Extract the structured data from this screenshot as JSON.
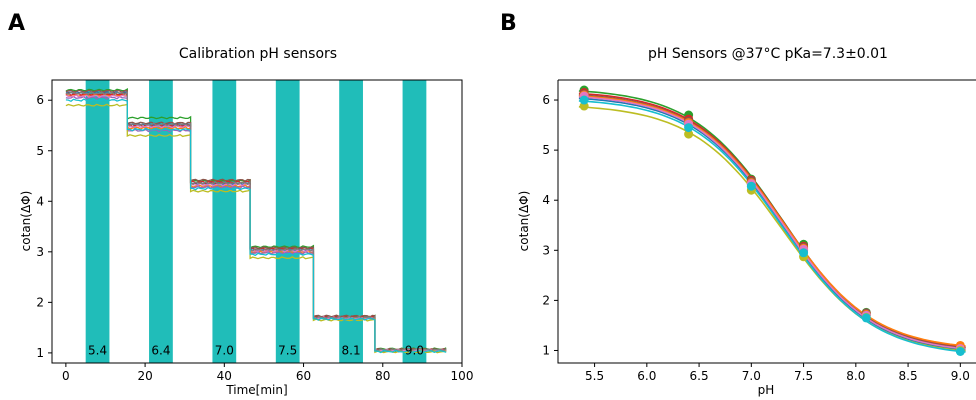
{
  "panel_letters": [
    "A",
    "B"
  ],
  "chart_data": [
    {
      "type": "line",
      "title": "Calibration pH sensors",
      "xlabel": "Time[min]",
      "ylabel": "cotan(ΔΦ)",
      "xlim": [
        -3.5,
        100
      ],
      "ylim": [
        0.8,
        6.4
      ],
      "xticks": [
        0,
        20,
        40,
        60,
        80,
        100
      ],
      "yticks": [
        1,
        2,
        3,
        4,
        5,
        6
      ],
      "grid": false,
      "bands": [
        {
          "x0": 5,
          "x1": 11,
          "label": "5.4"
        },
        {
          "x0": 21,
          "x1": 27,
          "label": "6.4"
        },
        {
          "x0": 37,
          "x1": 43,
          "label": "7.0"
        },
        {
          "x0": 53,
          "x1": 59,
          "label": "7.5"
        },
        {
          "x0": 69,
          "x1": 75,
          "label": "8.1"
        },
        {
          "x0": 85,
          "x1": 91,
          "label": "9.0"
        }
      ],
      "band_color": "#20bdb9",
      "step_times": [
        0,
        15.5,
        31.5,
        46.5,
        62.5,
        78,
        96
      ],
      "series": [
        {
          "color": "#1f77b4",
          "levels": [
            6.15,
            5.52,
            4.35,
            3.05,
            1.7,
            1.05
          ]
        },
        {
          "color": "#ff7f0e",
          "levels": [
            6.1,
            5.45,
            4.3,
            3.0,
            1.7,
            1.05
          ]
        },
        {
          "color": "#2ca02c",
          "levels": [
            6.2,
            5.65,
            4.4,
            3.1,
            1.72,
            1.08
          ]
        },
        {
          "color": "#d62728",
          "levels": [
            6.12,
            5.5,
            4.38,
            3.06,
            1.71,
            1.06
          ]
        },
        {
          "color": "#9467bd",
          "levels": [
            6.05,
            5.4,
            4.28,
            2.98,
            1.68,
            1.04
          ]
        },
        {
          "color": "#8c564b",
          "levels": [
            6.18,
            5.55,
            4.42,
            3.08,
            1.73,
            1.07
          ]
        },
        {
          "color": "#e377c2",
          "levels": [
            6.08,
            5.48,
            4.33,
            3.02,
            1.69,
            1.05
          ]
        },
        {
          "color": "#7f7f7f",
          "levels": [
            6.14,
            5.52,
            4.36,
            3.04,
            1.7,
            1.06
          ]
        },
        {
          "color": "#bcbd22",
          "levels": [
            5.9,
            5.3,
            4.2,
            2.88,
            1.65,
            1.02
          ]
        },
        {
          "color": "#17becf",
          "levels": [
            6.0,
            5.42,
            4.25,
            2.95,
            1.67,
            1.03
          ]
        }
      ]
    },
    {
      "type": "scatter",
      "title": "pH Sensors @37°C pKa=7.3±0.01",
      "xlabel": "pH",
      "ylabel": "cotan(ΔΦ)",
      "xlim": [
        5.15,
        9.15
      ],
      "ylim": [
        0.75,
        6.4
      ],
      "xticks": [
        5.5,
        6.0,
        6.5,
        7.0,
        7.5,
        8.0,
        8.5,
        9.0
      ],
      "yticks": [
        1,
        2,
        3,
        4,
        5,
        6
      ],
      "grid": false,
      "pKa": 7.3,
      "points_x": [
        5.4,
        6.4,
        7.0,
        7.5,
        8.1,
        9.0
      ],
      "series": [
        {
          "color": "#2ca02c",
          "y": [
            6.2,
            5.7,
            4.42,
            3.12,
            1.76,
            1.05
          ]
        },
        {
          "color": "#d62728",
          "y": [
            6.15,
            5.62,
            4.4,
            3.08,
            1.74,
            1.08
          ]
        },
        {
          "color": "#8c564b",
          "y": [
            6.12,
            5.58,
            4.38,
            3.06,
            1.75,
            1.06
          ]
        },
        {
          "color": "#ff7f0e",
          "y": [
            6.1,
            5.55,
            4.35,
            3.04,
            1.72,
            1.1
          ]
        },
        {
          "color": "#1f77b4",
          "y": [
            6.05,
            5.5,
            4.32,
            3.0,
            1.7,
            1.02
          ]
        },
        {
          "color": "#e377c2",
          "y": [
            6.08,
            5.52,
            4.33,
            3.02,
            1.7,
            1.04
          ]
        },
        {
          "color": "#bcbd22",
          "y": [
            5.88,
            5.32,
            4.2,
            2.87,
            1.66,
            1.0
          ]
        },
        {
          "color": "#17becf",
          "y": [
            6.0,
            5.45,
            4.28,
            2.95,
            1.65,
            0.98
          ]
        }
      ]
    }
  ]
}
